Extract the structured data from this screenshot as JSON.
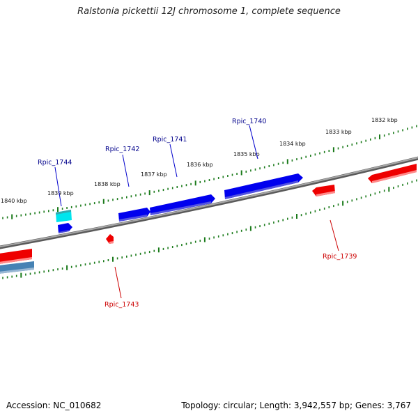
{
  "title": "Ralstonia pickettii 12J chromosome 1, complete sequence",
  "footer": {
    "accession": "Accession: NC_010682",
    "summary": "Topology: circular; Length: 3,942,557 bp; Genes: 3,767"
  },
  "colors": {
    "backbone": "#808080",
    "ticks": "#1a7a1a",
    "forward_gene": "#0000ee",
    "reverse_gene": "#ee0000",
    "forward_label": "#00008b",
    "reverse_label": "#cc0000",
    "highlight_cyan": "#00e5ee",
    "highlight_steel": "#4682b4"
  },
  "scale_labels": [
    "1840 kbp",
    "1839 kbp",
    "1838 kbp",
    "1837 kbp",
    "1836 kbp",
    "1835 kbp",
    "1834 kbp",
    "1833 kbp",
    "1832 kbp"
  ],
  "gene_labels": [
    {
      "name": "Rpic_1744",
      "strand": "forward"
    },
    {
      "name": "Rpic_1742",
      "strand": "forward"
    },
    {
      "name": "Rpic_1741",
      "strand": "forward"
    },
    {
      "name": "Rpic_1740",
      "strand": "forward"
    },
    {
      "name": "Rpic_1743",
      "strand": "reverse"
    },
    {
      "name": "Rpic_1739",
      "strand": "reverse"
    }
  ]
}
